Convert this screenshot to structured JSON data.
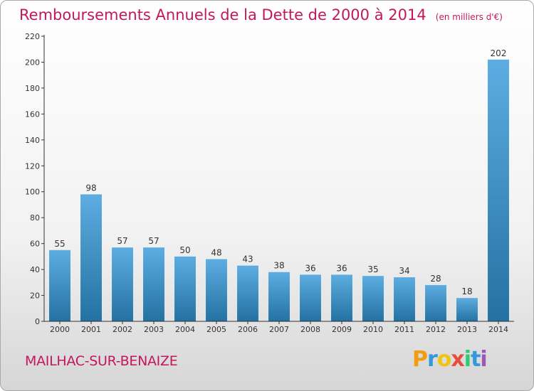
{
  "header": {
    "title": "Remboursements Annuels de la Dette de 2000 à 2014",
    "unit": "(en milliers d'€)"
  },
  "footer": {
    "commune": "MAILHAC-SUR-BENAIZE",
    "logo_text": "Proxiti",
    "logo_colors": [
      "#f39c12",
      "#3498db",
      "#f1c40f",
      "#e74c3c",
      "#2ecc71",
      "#3498db",
      "#9b59b6"
    ]
  },
  "colors": {
    "bar_light": "#5dade2",
    "bar_dark": "#2471a3",
    "title": "#c2185b",
    "axis": "#333333",
    "grid": "#e6e6e6"
  },
  "chart_data": {
    "type": "bar",
    "categories": [
      "2000",
      "2001",
      "2002",
      "2003",
      "2004",
      "2005",
      "2006",
      "2007",
      "2008",
      "2009",
      "2010",
      "2011",
      "2012",
      "2013",
      "2014"
    ],
    "values": [
      55,
      98,
      57,
      57,
      50,
      48,
      43,
      38,
      36,
      36,
      35,
      34,
      28,
      18,
      202
    ],
    "title": "Remboursements Annuels de la Dette de 2000 à 2014",
    "xlabel": "",
    "ylabel": "",
    "ylim": [
      0,
      220
    ],
    "yticks": [
      0,
      20,
      40,
      60,
      80,
      100,
      120,
      140,
      160,
      180,
      200,
      220
    ],
    "grid": false,
    "legend": "none"
  }
}
